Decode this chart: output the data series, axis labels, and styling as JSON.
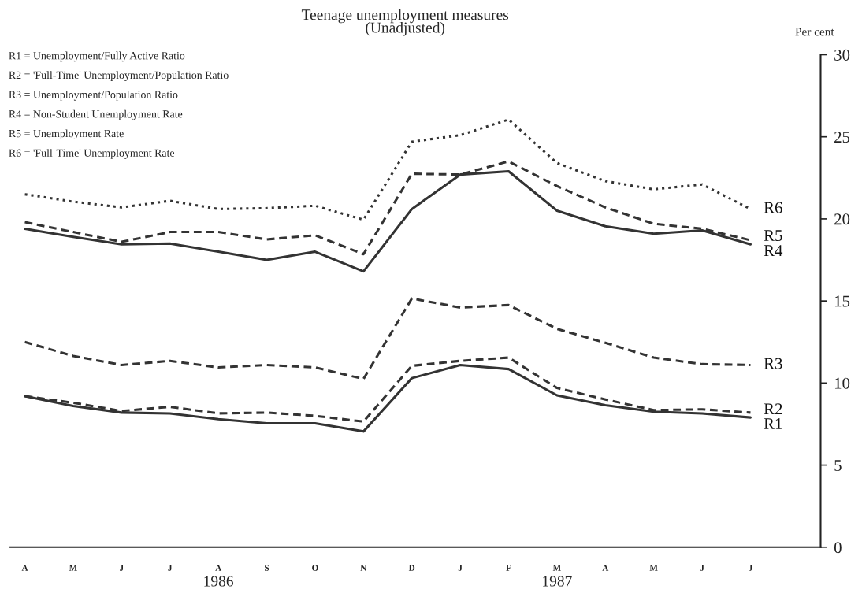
{
  "chart_data": {
    "type": "line",
    "title": "Teenage unemployment measures\n(Unadjusted)",
    "ylabel": "Per cent",
    "categories": [
      "A",
      "M",
      "J",
      "J",
      "A",
      "S",
      "O",
      "N",
      "D",
      "J",
      "F",
      "M",
      "A",
      "M",
      "J",
      "J",
      null
    ],
    "series": [
      {
        "name": "R1",
        "color": "#333333",
        "line_style": "solid",
        "values": [
          9.2,
          8.6,
          8.2,
          8.15,
          7.8,
          7.55,
          7.55,
          7.05,
          10.3,
          11.1,
          10.85,
          9.25,
          8.65,
          8.25,
          8.15,
          7.9,
          null
        ]
      },
      {
        "name": "R2",
        "color": "#333333",
        "line_style": "dashed",
        "values": [
          9.2,
          8.8,
          8.3,
          8.55,
          8.15,
          8.2,
          8.0,
          7.65,
          11.05,
          11.35,
          11.55,
          9.7,
          9.0,
          8.35,
          8.4,
          8.2,
          null
        ]
      },
      {
        "name": "R3",
        "color": "#333333",
        "line_style": "dashed",
        "values": [
          12.5,
          11.65,
          11.1,
          11.35,
          10.95,
          11.1,
          10.95,
          10.25,
          15.15,
          14.6,
          14.75,
          13.3,
          12.45,
          11.55,
          11.15,
          11.1,
          null
        ]
      },
      {
        "name": "R4",
        "color": "#333333",
        "line_style": "solid",
        "values": [
          19.4,
          18.9,
          18.45,
          18.5,
          18.0,
          17.5,
          18.0,
          16.8,
          20.6,
          22.7,
          22.9,
          20.5,
          19.55,
          19.1,
          19.3,
          18.45,
          null
        ]
      },
      {
        "name": "R5",
        "color": "#333333",
        "line_style": "dashed",
        "values": [
          19.8,
          19.2,
          18.6,
          19.2,
          19.2,
          18.75,
          19.0,
          17.85,
          22.75,
          22.7,
          23.5,
          22.0,
          20.7,
          19.7,
          19.4,
          18.7,
          null
        ]
      },
      {
        "name": "R6",
        "color": "#333333",
        "line_style": "dotted",
        "values": [
          21.5,
          21.05,
          20.7,
          21.1,
          20.6,
          20.65,
          20.8,
          19.95,
          24.7,
          25.1,
          26.05,
          23.4,
          22.3,
          21.8,
          22.1,
          20.6,
          null
        ]
      }
    ],
    "ylim": [
      0,
      30
    ],
    "yticks": [
      0,
      5,
      10,
      15,
      20,
      25,
      30
    ],
    "grid": false,
    "legend": false,
    "marker": "none",
    "annotations": [
      "R1 = Unemployment/Fully Active Ratio",
      "R2 = 'Full-Time' Unemployment/Population Ratio",
      "R3 = Unemployment/Population Ratio",
      "R4 = Non-Student Unemployment Rate",
      "R5 = Unemployment Rate",
      "R6 = 'Full-Time' Unemployment Rate",
      "1986",
      "1987"
    ]
  }
}
